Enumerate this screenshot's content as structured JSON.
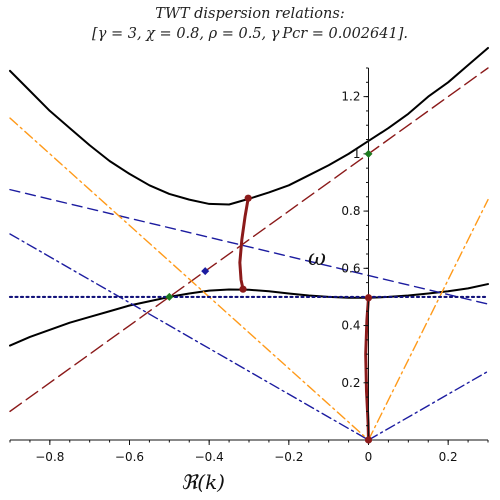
{
  "title": {
    "line1": "TWT dispersion relations:",
    "line2": "[γ = 3, χ = 0.8, ρ = 0.5, γ Pcr = 0.002641]."
  },
  "colors": {
    "black": "#000000",
    "darkred": "#8b1a1a",
    "navy": "#1c1ca0",
    "orange": "#ff9a1a",
    "green": "#1e7a1e",
    "dotted": "#12127a"
  },
  "chart_data": {
    "type": "line",
    "xlabel": "ℜ(k)",
    "ylabel": "ω",
    "xlim": [
      -0.9,
      0.3
    ],
    "ylim": [
      0,
      1.3
    ],
    "xticks": [
      {
        "v": -0.8,
        "label": "−0.8"
      },
      {
        "v": -0.6,
        "label": "−0.6"
      },
      {
        "v": -0.4,
        "label": "−0.4"
      },
      {
        "v": -0.2,
        "label": "−0.2"
      },
      {
        "v": 0,
        "label": "0"
      },
      {
        "v": 0.2,
        "label": "0.2"
      }
    ],
    "yticks": [
      {
        "v": 0.2,
        "label": "0.2"
      },
      {
        "v": 0.4,
        "label": "0.4"
      },
      {
        "v": 0.6,
        "label": "0.6"
      },
      {
        "v": 0.8,
        "label": "0.8"
      },
      {
        "v": 1.0,
        "label": "1"
      },
      {
        "v": 1.2,
        "label": "1.2"
      }
    ],
    "series": [
      {
        "id": "upper-branch",
        "style": "solid",
        "color": "#000000",
        "width": 2,
        "x": [
          -0.9,
          -0.85,
          -0.8,
          -0.75,
          -0.7,
          -0.65,
          -0.6,
          -0.55,
          -0.5,
          -0.45,
          -0.4,
          -0.35,
          -0.3,
          -0.25,
          -0.2,
          -0.15,
          -0.1,
          -0.05,
          0,
          0.05,
          0.1,
          0.15,
          0.2,
          0.25,
          0.3
        ],
        "y": [
          1.29,
          1.22,
          1.15,
          1.09,
          1.03,
          0.975,
          0.93,
          0.89,
          0.86,
          0.84,
          0.825,
          0.823,
          0.843,
          0.865,
          0.89,
          0.925,
          0.96,
          1.0,
          1.045,
          1.09,
          1.14,
          1.2,
          1.25,
          1.31,
          1.37
        ]
      },
      {
        "id": "lower-branch",
        "style": "solid",
        "color": "#000000",
        "width": 2,
        "x": [
          -0.9,
          -0.85,
          -0.8,
          -0.75,
          -0.7,
          -0.65,
          -0.6,
          -0.55,
          -0.5,
          -0.45,
          -0.4,
          -0.35,
          -0.3,
          -0.25,
          -0.2,
          -0.15,
          -0.1,
          -0.05,
          0,
          0.05,
          0.1,
          0.15,
          0.2,
          0.25,
          0.3
        ],
        "y": [
          0.33,
          0.36,
          0.385,
          0.41,
          0.43,
          0.45,
          0.47,
          0.485,
          0.5,
          0.512,
          0.522,
          0.526,
          0.525,
          0.52,
          0.512,
          0.505,
          0.5,
          0.497,
          0.497,
          0.5,
          0.505,
          0.512,
          0.52,
          0.53,
          0.545
        ]
      },
      {
        "id": "darkred-dashed-line",
        "style": "longdash",
        "color": "#8b1a1a",
        "width": 1.4,
        "x": [
          -0.9,
          0.3
        ],
        "y": [
          0.1,
          1.3
        ]
      },
      {
        "id": "navy-dashed-line",
        "style": "dash",
        "color": "#1c1ca0",
        "width": 1.4,
        "x": [
          -0.9,
          0.3
        ],
        "y": [
          0.875,
          0.475
        ]
      },
      {
        "id": "navy-dashdot-left",
        "style": "dashdot",
        "color": "#1c1ca0",
        "width": 1.4,
        "x": [
          -0.9,
          0
        ],
        "y": [
          0.72,
          0
        ]
      },
      {
        "id": "navy-dashdot-right",
        "style": "dashdot",
        "color": "#1c1ca0",
        "width": 1.4,
        "x": [
          0,
          0.3
        ],
        "y": [
          0,
          0.24
        ]
      },
      {
        "id": "orange-dashdot-left",
        "style": "dashdot",
        "color": "#ff9a1a",
        "width": 1.4,
        "x": [
          -0.9,
          0
        ],
        "y": [
          1.125,
          0
        ]
      },
      {
        "id": "orange-dashdot-right",
        "style": "dashdot",
        "color": "#ff9a1a",
        "width": 1.4,
        "x": [
          0,
          0.3
        ],
        "y": [
          0,
          0.84
        ]
      },
      {
        "id": "dotted-horizontal",
        "style": "dotted",
        "color": "#12127a",
        "width": 2.2,
        "x": [
          -0.9,
          0.3
        ],
        "y": [
          0.5,
          0.5
        ]
      },
      {
        "id": "complex-branch-left",
        "style": "solid",
        "color": "#8b1a1a",
        "width": 3,
        "x": [
          -0.302,
          -0.31,
          -0.318,
          -0.323,
          -0.32,
          -0.315
        ],
        "y": [
          0.845,
          0.78,
          0.7,
          0.62,
          0.56,
          0.527
        ]
      },
      {
        "id": "complex-branch-right",
        "style": "solid",
        "color": "#8b1a1a",
        "width": 3,
        "x": [
          0,
          -0.004,
          -0.007,
          -0.005,
          -0.001,
          0
        ],
        "y": [
          0.497,
          0.42,
          0.3,
          0.17,
          0.06,
          0
        ]
      }
    ],
    "markers": [
      {
        "id": "marker-upper-min",
        "x": -0.302,
        "y": 0.845,
        "color": "#8b1a1a",
        "shape": "circle"
      },
      {
        "id": "marker-lower-max",
        "x": -0.315,
        "y": 0.527,
        "color": "#8b1a1a",
        "shape": "circle"
      },
      {
        "id": "marker-origin-upper",
        "x": 0,
        "y": 0.497,
        "color": "#8b1a1a",
        "shape": "circle"
      },
      {
        "id": "marker-origin",
        "x": 0,
        "y": 0.0,
        "color": "#8b1a1a",
        "shape": "circle"
      },
      {
        "id": "marker-green-top",
        "x": 0,
        "y": 1.0,
        "color": "#1e7a1e",
        "shape": "diamond"
      },
      {
        "id": "marker-green-left",
        "x": -0.5,
        "y": 0.5,
        "color": "#1e7a1e",
        "shape": "diamond"
      },
      {
        "id": "marker-navy",
        "x": -0.41,
        "y": 0.59,
        "color": "#1c1ca0",
        "shape": "diamond"
      }
    ]
  }
}
